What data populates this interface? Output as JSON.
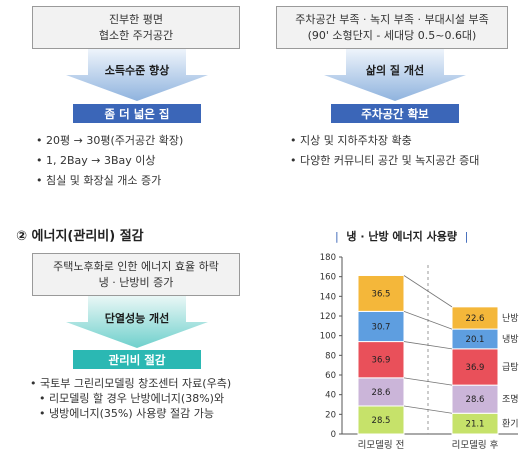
{
  "left_flow": {
    "source_lines": [
      "진부한 평면",
      "협소한 주거공간"
    ],
    "arrow_label": "소득수준 향상",
    "result": "좀 더 넓은 집",
    "bullets": [
      "20평 → 30평(주거공간 확장)",
      "1, 2Bay → 3Bay 이상",
      "침실 및 화장실 개소 증가"
    ]
  },
  "right_flow": {
    "source_lines": [
      "주차공간 부족 · 녹지 부족 · 부대시설 부족",
      "(90' 소형단지 - 세대당 0.5~0.6대)"
    ],
    "arrow_label": "삶의 질 개선",
    "result": "주차공간 확보",
    "bullets": [
      "지상 및 지하주차장 확충",
      "다양한 커뮤니티 공간 및 녹지공간 증대"
    ]
  },
  "energy_section": {
    "title": "② 에너지(관리비) 절감",
    "source_lines": [
      "주택노후화로 인한 에너지 효율 하락",
      "냉 · 난방비 증가"
    ],
    "arrow_label": "단열성능 개선",
    "result": "관리비 절감",
    "note_lines": [
      "국토부 그린리모델링 창조센터 자료(우측)",
      "리모델링 할 경우 난방에너지(38%)와",
      "냉방에너지(35%) 사용량 절감 가능"
    ]
  },
  "chart_data": {
    "type": "bar",
    "stacked": true,
    "title": "냉 · 난방 에너지 사용량",
    "categories": [
      "리모델링 전",
      "리모델링 후"
    ],
    "series": [
      {
        "name": "환기",
        "values": [
          28.5,
          21.1
        ],
        "color": "#c6e26a"
      },
      {
        "name": "조명",
        "values": [
          28.6,
          28.6
        ],
        "color": "#cbb5d9"
      },
      {
        "name": "급탕",
        "values": [
          36.9,
          36.9
        ],
        "color": "#e9505a"
      },
      {
        "name": "냉방",
        "values": [
          30.7,
          20.1
        ],
        "color": "#5e9ee0"
      },
      {
        "name": "난방",
        "values": [
          36.5,
          22.6
        ],
        "color": "#f4b73a"
      }
    ],
    "ylim": [
      0,
      180
    ],
    "yticks": [
      0,
      20,
      40,
      60,
      80,
      100,
      120,
      140,
      160,
      180
    ],
    "legend": "right"
  }
}
